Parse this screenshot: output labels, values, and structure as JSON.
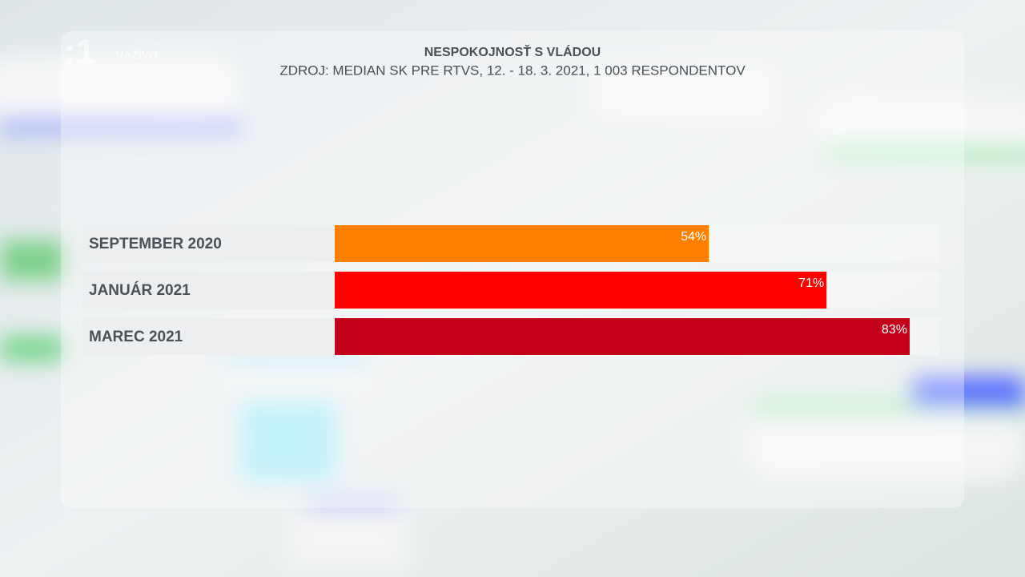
{
  "watermark": {
    "live": "NAŽIVO"
  },
  "chart_data": {
    "type": "bar",
    "orientation": "horizontal",
    "title": "NESPOKOJNOSŤ S VLÁDOU",
    "subtitle": "ZDROJ: MEDIAN SK PRE RTVS, 12. - 18. 3. 2021, 1 003 RESPONDENTOV",
    "categories": [
      "SEPTEMBER 2020",
      "JANUÁR 2021",
      "MAREC 2021"
    ],
    "values": [
      54,
      71,
      83
    ],
    "value_labels": [
      "54%",
      "71%",
      "83%"
    ],
    "colors": [
      "#ff7f00",
      "#ff0000",
      "#c4001a"
    ]
  }
}
